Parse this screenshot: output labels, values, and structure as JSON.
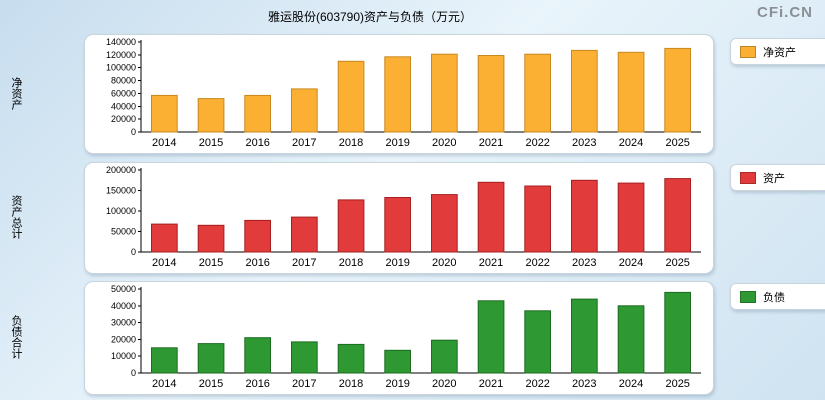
{
  "title": "雅运股份(603790)资产与负债（万元）",
  "watermark": "CFi.CN",
  "chart_data": [
    {
      "type": "bar",
      "axis_title": "净资产",
      "legend": "净资产",
      "legend_position": "right",
      "bar_color": "#FBB034",
      "bar_edge": "#C7891E",
      "grid": false,
      "ylim": [
        0,
        140000
      ],
      "ytick_step": 20000,
      "categories": [
        "2014",
        "2015",
        "2016",
        "2017",
        "2018",
        "2019",
        "2020",
        "2021",
        "2022",
        "2023",
        "2024",
        "2025"
      ],
      "values": [
        57000,
        52000,
        57000,
        67000,
        110000,
        117000,
        121000,
        119000,
        121000,
        127000,
        124000,
        130000
      ]
    },
    {
      "type": "bar",
      "axis_title": "资产总计",
      "legend": "资产",
      "legend_position": "right",
      "bar_color": "#E23B3B",
      "bar_edge": "#A51F1F",
      "grid": false,
      "ylim": [
        0,
        200000
      ],
      "ytick_step": 50000,
      "categories": [
        "2014",
        "2015",
        "2016",
        "2017",
        "2018",
        "2019",
        "2020",
        "2021",
        "2022",
        "2023",
        "2024",
        "2025"
      ],
      "values": [
        68000,
        65000,
        77000,
        85000,
        127000,
        133000,
        140000,
        170000,
        161000,
        175000,
        168000,
        179000
      ]
    },
    {
      "type": "bar",
      "axis_title": "负债合计",
      "legend": "负债",
      "legend_position": "right",
      "bar_color": "#2E9932",
      "bar_edge": "#1C6B20",
      "grid": false,
      "ylim": [
        0,
        50000
      ],
      "ytick_step": 10000,
      "categories": [
        "2014",
        "2015",
        "2016",
        "2017",
        "2018",
        "2019",
        "2020",
        "2021",
        "2022",
        "2023",
        "2024",
        "2025"
      ],
      "values": [
        15000,
        17500,
        21000,
        18500,
        17000,
        13500,
        19500,
        43000,
        37000,
        44000,
        40000,
        48000
      ]
    }
  ]
}
